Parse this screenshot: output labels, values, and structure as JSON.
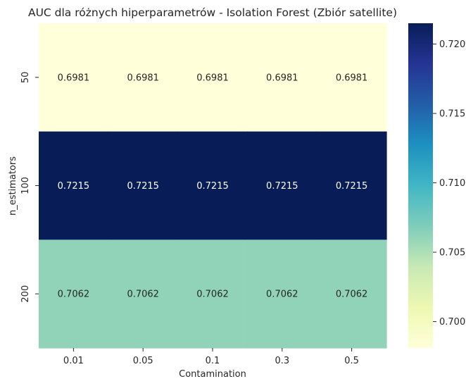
{
  "chart_data": {
    "type": "heatmap",
    "title": "AUC dla różnych hiperparametrów - Isolation Forest (Zbiór satellite)",
    "xlabel": "Contamination",
    "ylabel": "n_estimators",
    "x_categories": [
      "0.01",
      "0.05",
      "0.1",
      "0.3",
      "0.5"
    ],
    "y_categories": [
      "50",
      "100",
      "200"
    ],
    "values": [
      [
        0.6981,
        0.6981,
        0.6981,
        0.6981,
        0.6981
      ],
      [
        0.7215,
        0.7215,
        0.7215,
        0.7215,
        0.7215
      ],
      [
        0.7062,
        0.7062,
        0.7062,
        0.7062,
        0.7062
      ]
    ],
    "value_format": "0.0000",
    "colormap": "YlGnBu",
    "colorbar": {
      "range": [
        0.6981,
        0.7215
      ],
      "ticks": [
        0.7,
        0.705,
        0.71,
        0.715,
        0.72
      ],
      "tick_labels": [
        "0.700",
        "0.705",
        "0.710",
        "0.715",
        "0.720"
      ]
    },
    "annotation_colors": {
      "dark": "#262626",
      "light": "#ffffff"
    }
  }
}
